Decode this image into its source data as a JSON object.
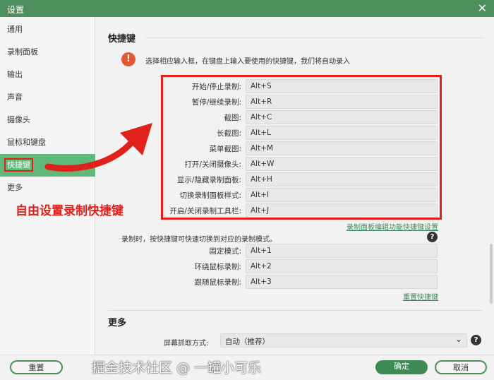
{
  "window": {
    "title": "设置",
    "close_icon": "close-icon"
  },
  "sidebar": {
    "items": [
      {
        "label": "通用"
      },
      {
        "label": "录制面板"
      },
      {
        "label": "输出"
      },
      {
        "label": "声音"
      },
      {
        "label": "摄像头"
      },
      {
        "label": "鼠标和键盘"
      },
      {
        "label": "快捷键",
        "active": true
      },
      {
        "label": "更多"
      }
    ]
  },
  "shortcuts": {
    "title": "快捷键",
    "tip": "选择相应输入框，在键盘上输入要使用的快捷键，我们将自动录入",
    "rows": [
      {
        "label": "开始/停止录制:",
        "value": "Alt+S"
      },
      {
        "label": "暂停/继续录制:",
        "value": "Alt+R"
      },
      {
        "label": "截图:",
        "value": "Alt+C"
      },
      {
        "label": "长截图:",
        "value": "Alt+L"
      },
      {
        "label": "菜单截图:",
        "value": "Alt+M"
      },
      {
        "label": "打开/关闭摄像头:",
        "value": "Alt+W"
      },
      {
        "label": "显示/隐藏录制面板:",
        "value": "Alt+H"
      },
      {
        "label": "切换录制面板样式:",
        "value": "Alt+I"
      },
      {
        "label": "开启/关闭录制工具栏:",
        "value": "Alt+J"
      }
    ],
    "panel_link": "录制面板编辑功能快捷键设置",
    "mode_tip": "录制时，按快捷键可快速切换到对应的录制模式。",
    "mode_rows": [
      {
        "label": "固定模式:",
        "value": "Alt+1"
      },
      {
        "label": "环绕鼠标录制:",
        "value": "Alt+2"
      },
      {
        "label": "跟随鼠标录制:",
        "value": "Alt+3"
      }
    ],
    "reset_link": "重置快捷键"
  },
  "more": {
    "title": "更多",
    "capture_label": "屏幕抓取方式:",
    "capture_value": "自动（推荐）"
  },
  "footer": {
    "reset": "重置",
    "ok": "确定",
    "cancel": "取消"
  },
  "annotation": {
    "text": "自由设置录制快捷键",
    "color": "#e0201a"
  },
  "watermark": "掘金技术社区 @ 一罐小可乐",
  "colors": {
    "accent": "#4e8f5e",
    "active": "#5fb97a",
    "warning": "#e5572f"
  }
}
